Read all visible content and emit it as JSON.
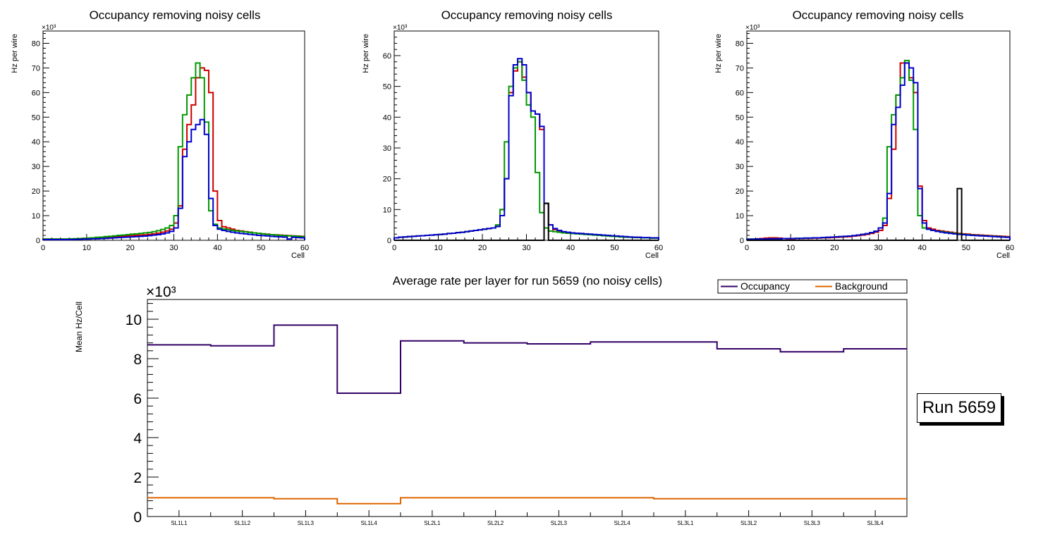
{
  "colors": {
    "red": "#cc0000",
    "green": "#009900",
    "blue": "#0000cc",
    "black": "#000000",
    "occupancy": "#330066",
    "background": "#dd6600"
  },
  "run_label": "Run 5659",
  "chart_data": [
    {
      "type": "line",
      "step": true,
      "title": "Occupancy removing noisy cells",
      "xlabel": "Cell",
      "ylabel": "Hz per wire",
      "y_multiplier": "×10³",
      "xlim": [
        0,
        60
      ],
      "ylim": [
        0,
        85
      ],
      "x_ticks": [
        0,
        10,
        20,
        30,
        40,
        50,
        60
      ],
      "y_ticks": [
        0,
        10,
        20,
        30,
        40,
        50,
        60,
        70,
        80
      ],
      "series": [
        {
          "name": "red",
          "color_key": "red",
          "values": [
            0.5,
            0.5,
            0.5,
            0.5,
            0.5,
            0.5,
            0.5,
            0.6,
            0.7,
            0.8,
            0.9,
            1.0,
            1.1,
            1.2,
            1.3,
            1.4,
            1.5,
            1.6,
            1.7,
            1.8,
            1.9,
            2.0,
            2.1,
            2.2,
            2.4,
            2.6,
            2.9,
            3.3,
            3.8,
            4.5,
            7,
            14,
            37,
            47,
            55,
            66,
            70,
            69,
            60,
            20,
            8,
            5.5,
            5,
            4.5,
            4,
            3.8,
            3.5,
            3.3,
            3.0,
            2.8,
            2.6,
            2.5,
            2.3,
            2.2,
            2.1,
            2.0,
            1.9,
            1.8,
            1.7,
            1.6
          ]
        },
        {
          "name": "green",
          "color_key": "green",
          "values": [
            0.5,
            0.5,
            0.5,
            0.5,
            0.5,
            0.5,
            0.6,
            0.6,
            0.7,
            0.8,
            0.9,
            1.0,
            1.2,
            1.3,
            1.5,
            1.6,
            1.8,
            2.0,
            2.1,
            2.3,
            2.5,
            2.6,
            2.8,
            3.0,
            3.2,
            3.5,
            3.9,
            4.4,
            5,
            6,
            10,
            38,
            51,
            59,
            66,
            72,
            66,
            48,
            12,
            6.5,
            5,
            4.6,
            4.3,
            4,
            3.8,
            3.6,
            3.4,
            3.2,
            3.0,
            2.8,
            2.6,
            2.4,
            2.3,
            2.1,
            2.0,
            1.9,
            1.8,
            1.7,
            1.6,
            1.5
          ]
        },
        {
          "name": "blue",
          "color_key": "blue",
          "values": [
            0.3,
            0.3,
            0.3,
            0.3,
            0.3,
            0.3,
            0.3,
            0.4,
            0.4,
            0.5,
            0.5,
            0.6,
            0.6,
            0.7,
            0.8,
            0.9,
            1.0,
            1.1,
            1.2,
            1.3,
            1.4,
            1.5,
            1.6,
            1.7,
            1.9,
            2.1,
            2.3,
            2.6,
            3.0,
            3.6,
            5,
            13,
            34,
            40,
            45,
            47,
            49,
            43,
            17,
            6,
            4.5,
            4,
            3.6,
            3.3,
            3.0,
            2.8,
            2.6,
            2.4,
            2.2,
            2.0,
            1.9,
            1.8,
            1.6,
            1.5,
            1.4,
            1.3,
            0.5,
            1.2,
            1.1,
            1.0
          ]
        }
      ]
    },
    {
      "type": "line",
      "step": true,
      "title": "Occupancy removing noisy cells",
      "xlabel": "Cell",
      "ylabel": "Hz per wire",
      "y_multiplier": "×10³",
      "xlim": [
        0,
        60
      ],
      "ylim": [
        0,
        68
      ],
      "x_ticks": [
        0,
        10,
        20,
        30,
        40,
        50,
        60
      ],
      "y_ticks": [
        0,
        10,
        20,
        30,
        40,
        50,
        60
      ],
      "series": [
        {
          "name": "red",
          "color_key": "red",
          "values": [
            0.8,
            1.0,
            1.1,
            1.2,
            1.3,
            1.4,
            1.5,
            1.6,
            1.7,
            1.8,
            1.9,
            2.0,
            2.2,
            2.3,
            2.5,
            2.6,
            2.8,
            3.0,
            3.2,
            3.4,
            3.6,
            3.8,
            4.0,
            4.5,
            10,
            20,
            48,
            55,
            58,
            53,
            48,
            42,
            41,
            36,
            12,
            5,
            3.5,
            3.0,
            2.7,
            2.5,
            2.4,
            2.3,
            2.2,
            2.0,
            1.9,
            1.8,
            1.7,
            1.6,
            1.5,
            1.4,
            1.3,
            1.2,
            1.1,
            1.0,
            1.0,
            0.9,
            0.8,
            0.8,
            0.7,
            0.7
          ]
        },
        {
          "name": "green",
          "color_key": "green",
          "values": [
            0.8,
            1.0,
            1.1,
            1.2,
            1.3,
            1.4,
            1.5,
            1.6,
            1.7,
            1.8,
            1.9,
            2.0,
            2.2,
            2.3,
            2.5,
            2.6,
            2.8,
            3.0,
            3.2,
            3.4,
            3.6,
            3.8,
            4.0,
            5,
            10,
            32,
            50,
            56,
            58,
            52,
            44,
            40,
            22,
            9,
            4,
            3,
            2.8,
            2.6,
            2.4,
            2.3,
            2.2,
            2.1,
            2.0,
            1.9,
            1.8,
            1.7,
            1.6,
            1.5,
            1.4,
            1.3,
            1.2,
            1.1,
            1.0,
            1.0,
            0.9,
            0.9,
            0.8,
            0.8,
            0.7,
            0.7
          ]
        },
        {
          "name": "blue",
          "color_key": "blue",
          "values": [
            0.8,
            1.0,
            1.1,
            1.2,
            1.3,
            1.4,
            1.5,
            1.6,
            1.7,
            1.8,
            1.9,
            2.0,
            2.2,
            2.3,
            2.5,
            2.6,
            2.8,
            3.0,
            3.2,
            3.4,
            3.6,
            3.8,
            4.0,
            4.5,
            8,
            20,
            47,
            57,
            59,
            57,
            48,
            42,
            41,
            37,
            12,
            5,
            3.8,
            3.2,
            2.8,
            2.6,
            2.4,
            2.3,
            2.2,
            2.1,
            2.0,
            1.9,
            1.8,
            1.7,
            1.6,
            1.5,
            1.4,
            1.3,
            1.2,
            1.1,
            1.0,
            1.0,
            0.9,
            0.9,
            0.8,
            0.8
          ]
        },
        {
          "name": "black",
          "color_key": "black",
          "values": [
            0,
            0,
            0,
            0,
            0,
            0,
            0,
            0,
            0,
            0,
            0,
            0,
            0,
            0,
            0,
            0,
            0,
            0,
            0,
            0,
            0,
            0,
            0,
            0,
            0,
            0,
            0,
            0,
            0,
            0,
            0,
            0,
            0,
            0,
            12,
            0,
            0,
            0,
            0,
            0,
            0,
            0,
            0,
            0,
            0,
            0,
            0,
            0,
            0,
            0,
            0,
            0,
            0,
            0,
            0,
            0,
            0,
            0,
            0,
            0
          ]
        }
      ]
    },
    {
      "type": "line",
      "step": true,
      "title": "Occupancy removing noisy cells",
      "xlabel": "Cell",
      "ylabel": "Hz per wire",
      "y_multiplier": "×10³",
      "xlim": [
        0,
        60
      ],
      "ylim": [
        0,
        85
      ],
      "x_ticks": [
        0,
        10,
        20,
        30,
        40,
        50,
        60
      ],
      "y_ticks": [
        0,
        10,
        20,
        30,
        40,
        50,
        60,
        70,
        80
      ],
      "series": [
        {
          "name": "red",
          "color_key": "red",
          "values": [
            0.5,
            0.5,
            0.6,
            0.7,
            0.9,
            1.0,
            1.0,
            0.9,
            0.7,
            0.6,
            0.6,
            0.7,
            0.7,
            0.8,
            0.8,
            0.9,
            0.9,
            1.0,
            1.0,
            1.1,
            1.2,
            1.3,
            1.4,
            1.5,
            1.7,
            1.9,
            2.1,
            2.4,
            2.8,
            3.3,
            4,
            6,
            17,
            37,
            59,
            72,
            72,
            66,
            60,
            22,
            8,
            5,
            4.5,
            4,
            3.8,
            3.5,
            3.3,
            3.0,
            2.8,
            2.6,
            2.5,
            2.3,
            2.2,
            2.1,
            2.0,
            1.9,
            1.8,
            1.7,
            1.6,
            1.5
          ]
        },
        {
          "name": "green",
          "color_key": "green",
          "values": [
            0.5,
            0.5,
            0.5,
            0.5,
            0.5,
            0.6,
            0.6,
            0.6,
            0.7,
            0.7,
            0.7,
            0.8,
            0.8,
            0.9,
            0.9,
            1.0,
            1.0,
            1.1,
            1.2,
            1.3,
            1.4,
            1.5,
            1.6,
            1.7,
            1.9,
            2.1,
            2.4,
            2.7,
            3.1,
            3.7,
            5,
            9,
            38,
            51,
            59,
            66,
            73,
            65,
            45,
            10,
            5,
            4.5,
            4,
            3.7,
            3.5,
            3.2,
            3.0,
            2.8,
            2.6,
            2.4,
            2.3,
            2.1,
            2.0,
            1.9,
            1.8,
            1.7,
            1.6,
            1.5,
            1.4,
            1.3
          ]
        },
        {
          "name": "blue",
          "color_key": "blue",
          "values": [
            0.4,
            0.4,
            0.5,
            0.5,
            0.5,
            0.6,
            0.6,
            0.6,
            0.7,
            0.7,
            0.7,
            0.8,
            0.8,
            0.9,
            0.9,
            1.0,
            1.0,
            1.1,
            1.2,
            1.3,
            1.4,
            1.5,
            1.6,
            1.7,
            1.9,
            2.1,
            2.4,
            2.7,
            3.1,
            3.7,
            5,
            7,
            19,
            47,
            54,
            63,
            72,
            70,
            64,
            21,
            7,
            4.5,
            4,
            3.6,
            3.3,
            3.0,
            2.8,
            2.6,
            2.4,
            2.3,
            2.1,
            2.0,
            1.9,
            1.8,
            1.7,
            1.6,
            1.5,
            1.4,
            1.3,
            1.2
          ]
        },
        {
          "name": "black",
          "color_key": "black",
          "values": [
            0,
            0,
            0,
            0,
            0,
            0,
            0,
            0,
            0,
            0,
            0,
            0,
            0,
            0,
            0,
            0,
            0,
            0,
            0,
            0,
            0,
            0,
            0,
            0,
            0,
            0,
            0,
            0,
            0,
            0,
            0,
            0,
            0,
            0,
            0,
            0,
            0,
            0,
            0,
            0,
            0,
            0,
            0,
            0,
            0,
            0,
            0,
            0,
            21,
            0,
            0,
            0,
            0,
            0,
            0,
            0,
            0,
            0,
            0,
            0
          ]
        }
      ]
    },
    {
      "type": "line",
      "step": true,
      "title": "Average rate per layer for run 5659 (no noisy cells)",
      "xlabel": "",
      "ylabel": "Mean Hz/Cell",
      "y_multiplier": "×10³",
      "categories": [
        "SL1L1",
        "SL1L2",
        "SL1L3",
        "SL1L4",
        "SL2L1",
        "SL2L2",
        "SL2L3",
        "SL2L4",
        "SL3L1",
        "SL3L2",
        "SL3L3",
        "SL3L4"
      ],
      "ylim": [
        0,
        11
      ],
      "y_ticks": [
        0,
        2,
        4,
        6,
        8,
        10
      ],
      "legend": {
        "position": "top-right",
        "entries": [
          "Occupancy",
          "Background"
        ]
      },
      "series": [
        {
          "name": "Occupancy",
          "color_key": "occupancy",
          "values": [
            8.7,
            8.65,
            9.7,
            6.25,
            8.9,
            8.8,
            8.75,
            8.85,
            8.85,
            8.5,
            8.35,
            8.5
          ]
        },
        {
          "name": "Background",
          "color_key": "background",
          "values": [
            0.95,
            0.95,
            0.9,
            0.65,
            0.95,
            0.95,
            0.95,
            0.95,
            0.9,
            0.9,
            0.9,
            0.9
          ]
        }
      ]
    }
  ]
}
